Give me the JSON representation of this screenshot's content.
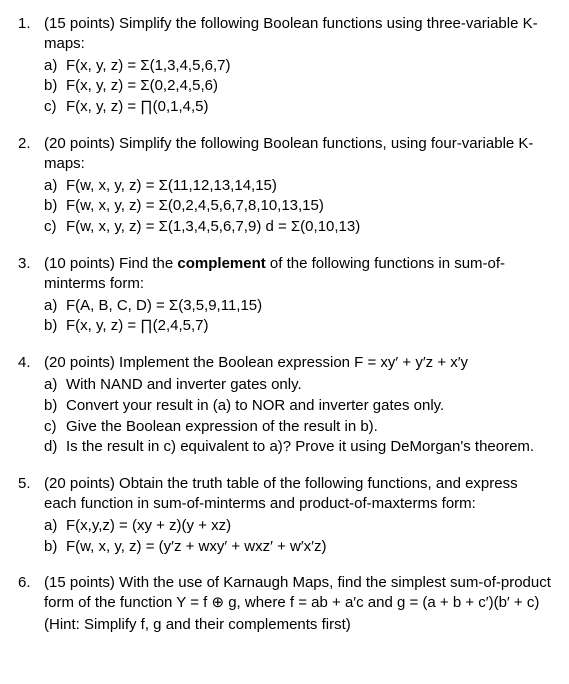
{
  "q1": {
    "num": "1.",
    "text_pre": "(15 points) Simplify the following Boolean functions using three-variable ",
    "text_post": "K-maps:",
    "a": "F(x, y, z) = Σ(1,3,4,5,6,7)",
    "b": "F(x, y, z) = Σ(0,2,4,5,6)",
    "c": "F(x, y, z) = ∏(0,1,4,5)"
  },
  "q2": {
    "num": "2.",
    "text_pre": "(20 points) Simplify the following Boolean functions, using four-variable ",
    "text_post": "K-maps:",
    "a": "F(w, x, y, z) = Σ(11,12,13,14,15)",
    "b": "F(w, x, y, z) = Σ(0,2,4,5,6,7,8,10,13,15)",
    "c": "F(w, x, y, z) = Σ(1,3,4,5,6,7,9)    d = Σ(0,10,13)"
  },
  "q3": {
    "num": "3.",
    "text_pre": "(10 points) Find the ",
    "bold": "complement",
    "text_post": " of the following functions in sum-of-minterms form:",
    "a": "F(A, B, C, D) = Σ(3,5,9,11,15)",
    "b": "F(x, y, z) = ∏(2,4,5,7)"
  },
  "q4": {
    "num": "4.",
    "text": "(20 points) Implement the Boolean expression  F = xy′ + y′z + x′y",
    "a": "With NAND and inverter gates only.",
    "b": "Convert your result in (a) to NOR and inverter gates only.",
    "c": "Give the Boolean expression of the result in b).",
    "d": "Is the result in c) equivalent to a)? Prove it using DeMorgan's theorem."
  },
  "q5": {
    "num": "5.",
    "text": "(20 points) Obtain the truth table of the following functions, and express each function in sum-of-minterms and product-of-maxterms form:",
    "a": "F(x,y,z) = (xy + z)(y + xz)",
    "b": "F(w, x, y, z) = (y′z + wxy′ + wxz′ + w′x′z)"
  },
  "q6": {
    "num": "6.",
    "text1": "(15 points) With the use of Karnaugh Maps, find the simplest sum-of-product form of the function  Y = f ⊕ g, where  f = ab + a′c  and  g = (a + b + c′)(b′ + c)",
    "hint": "(Hint: Simplify f, g and their complements first)"
  },
  "labels": {
    "a": "a)",
    "b": "b)",
    "c": "c)",
    "d": "d)"
  }
}
